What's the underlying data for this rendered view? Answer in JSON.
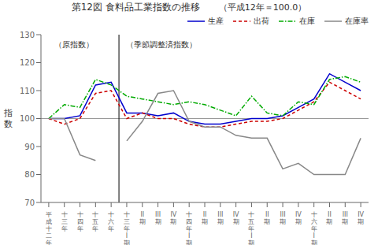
{
  "chart_data": {
    "type": "line",
    "title": "第12図  食料品工業指数の推移",
    "subtitle": "（平成12年＝100.0）",
    "y_label": "指\n数",
    "annotations": [
      "（原指数）",
      "（季節調整済指数）"
    ],
    "categories": [
      "平\n成\n十\n二\n年",
      "十\n三\n年",
      "十\n四\n年",
      "十\n五\n年",
      "十\n六\n年",
      "十\n三\n年\nI\n期",
      "II\n期",
      "III\n期",
      "IV\n期",
      "十\n四\n年\nI\n期",
      "II\n期",
      "III\n期",
      "IV\n期",
      "十\n五\n年\nI\n期",
      "II\n期",
      "III\n期",
      "IV\n期",
      "十\n六\n年\nI\n期",
      "II\n期",
      "III\n期",
      "IV\n期"
    ],
    "series": [
      {
        "name": "生産",
        "color": "#0000cc",
        "line_style": "solid",
        "values": [
          100,
          100,
          101,
          112,
          113,
          102,
          102,
          101,
          102,
          99,
          98,
          98,
          99,
          100,
          100,
          101,
          104,
          107,
          116,
          113,
          110
        ]
      },
      {
        "name": "出荷",
        "color": "#cc0000",
        "line_style": "dashed",
        "values": [
          100,
          98,
          100,
          109,
          110,
          100,
          102,
          100,
          100,
          98,
          97,
          97,
          98,
          99,
          99,
          100,
          103,
          106,
          113,
          110,
          107
        ]
      },
      {
        "name": "在庫",
        "color": "#00aa00",
        "line_style": "dashdot",
        "values": [
          100,
          105,
          104,
          114,
          112,
          108,
          107,
          106,
          105,
          106,
          105,
          103,
          101,
          108,
          102,
          101,
          106,
          105,
          114,
          115,
          113
        ]
      },
      {
        "name": "在庫率",
        "color": "#888888",
        "line_style": "solid",
        "values": [
          100,
          100,
          87,
          85,
          null,
          92,
          99,
          109,
          110,
          99,
          97,
          97,
          94,
          93,
          93,
          82,
          84,
          80,
          80,
          80,
          93
        ]
      }
    ],
    "ref_line": 100,
    "ylim": [
      70,
      130
    ],
    "yticks": [
      70,
      80,
      90,
      100,
      110,
      120,
      130
    ],
    "grid": false,
    "legend": "upper right"
  }
}
